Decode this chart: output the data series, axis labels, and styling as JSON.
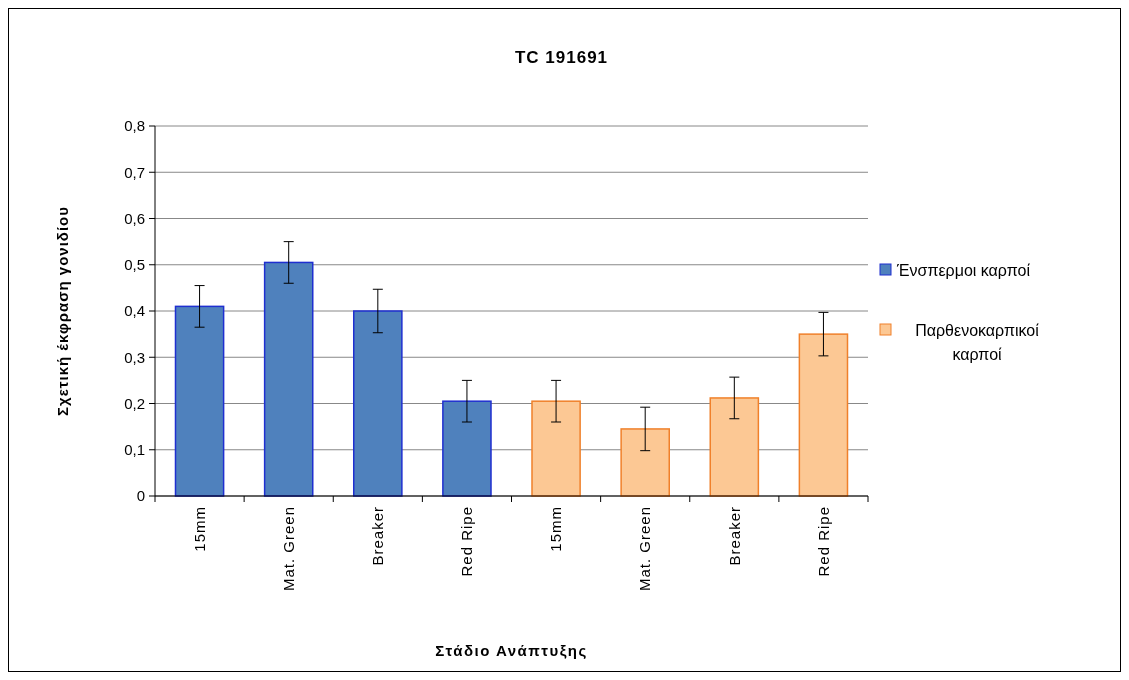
{
  "chart_data": {
    "type": "bar",
    "title": "TC 191691",
    "xlabel": "Στάδιο Ανάπτυξης",
    "ylabel": "Σχετική έκφραση γονιδίου",
    "categories": [
      "15mm",
      "Mat. Green",
      "Breaker",
      "Red Ripe",
      "15mm",
      "Mat. Green",
      "Breaker",
      "Red Ripe"
    ],
    "series": [
      {
        "name": "Ένσπερμοι καρποί",
        "color": "#4f81bd",
        "values": [
          0.41,
          0.505,
          0.4,
          0.205,
          null,
          null,
          null,
          null
        ],
        "errors": [
          0.045,
          0.045,
          0.047,
          0.045,
          null,
          null,
          null,
          null
        ]
      },
      {
        "name": "Παρθενοκαρπικοί καρποί",
        "color": "#fcc894",
        "values": [
          null,
          null,
          null,
          null,
          0.205,
          0.145,
          0.212,
          0.35
        ],
        "errors": [
          null,
          null,
          null,
          null,
          0.045,
          0.047,
          0.045,
          0.047
        ]
      }
    ],
    "ylim": [
      0,
      0.8
    ],
    "yticks": [
      {
        "value": 0,
        "label": "0"
      },
      {
        "value": 0.1,
        "label": "0,1"
      },
      {
        "value": 0.2,
        "label": "0,2"
      },
      {
        "value": 0.3,
        "label": "0,3"
      },
      {
        "value": 0.4,
        "label": "0,4"
      },
      {
        "value": 0.5,
        "label": "0,5"
      },
      {
        "value": 0.6,
        "label": "0,6"
      },
      {
        "value": 0.7,
        "label": "0,7"
      },
      {
        "value": 0.8,
        "label": "0,8"
      }
    ],
    "grid": "y",
    "legend": "right"
  }
}
